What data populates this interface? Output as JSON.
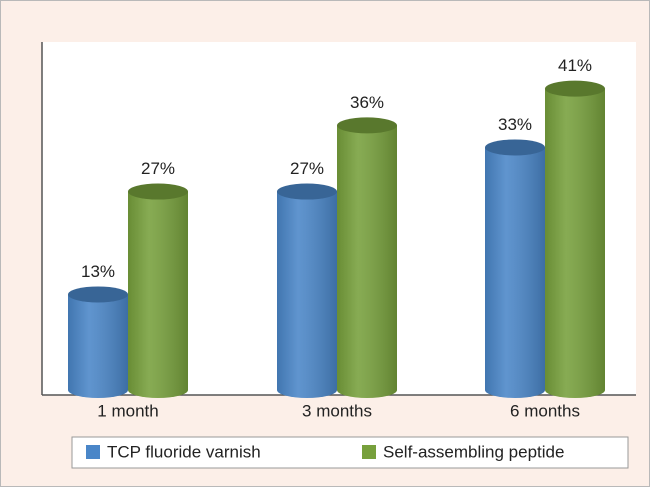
{
  "chart_data": {
    "type": "bar",
    "categories": [
      "1 month",
      "3 months",
      "6 months"
    ],
    "series": [
      {
        "name": "TCP fluoride varnish",
        "color": "#4a86c8",
        "values": [
          13,
          27,
          33
        ],
        "value_labels": [
          "13%",
          "27%",
          "33%"
        ]
      },
      {
        "name": "Self-assembling peptide",
        "color": "#77a03c",
        "values": [
          27,
          36,
          41
        ],
        "value_labels": [
          "27%",
          "36%",
          "41%"
        ]
      }
    ],
    "legend": "bottom"
  }
}
